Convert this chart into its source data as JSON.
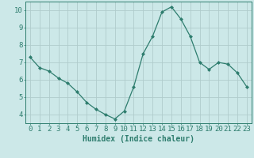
{
  "x": [
    0,
    1,
    2,
    3,
    4,
    5,
    6,
    7,
    8,
    9,
    10,
    11,
    12,
    13,
    14,
    15,
    16,
    17,
    18,
    19,
    20,
    21,
    22,
    23
  ],
  "y": [
    7.3,
    6.7,
    6.5,
    6.1,
    5.8,
    5.3,
    4.7,
    4.3,
    4.0,
    3.75,
    4.2,
    5.6,
    7.5,
    8.5,
    9.9,
    10.2,
    9.5,
    8.5,
    7.0,
    6.6,
    7.0,
    6.9,
    6.4,
    5.6
  ],
  "line_color": "#2e7d6e",
  "marker": "D",
  "marker_size": 2,
  "bg_color": "#cce8e8",
  "grid_color": "#b0cccc",
  "xlabel": "Humidex (Indice chaleur)",
  "ylim": [
    3.5,
    10.5
  ],
  "xlim": [
    -0.5,
    23.5
  ],
  "yticks": [
    4,
    5,
    6,
    7,
    8,
    9,
    10
  ],
  "xticks": [
    0,
    1,
    2,
    3,
    4,
    5,
    6,
    7,
    8,
    9,
    10,
    11,
    12,
    13,
    14,
    15,
    16,
    17,
    18,
    19,
    20,
    21,
    22,
    23
  ],
  "tick_color": "#2e7d6e",
  "axis_color": "#2e7d6e",
  "label_fontsize": 7,
  "tick_fontsize": 6.5
}
